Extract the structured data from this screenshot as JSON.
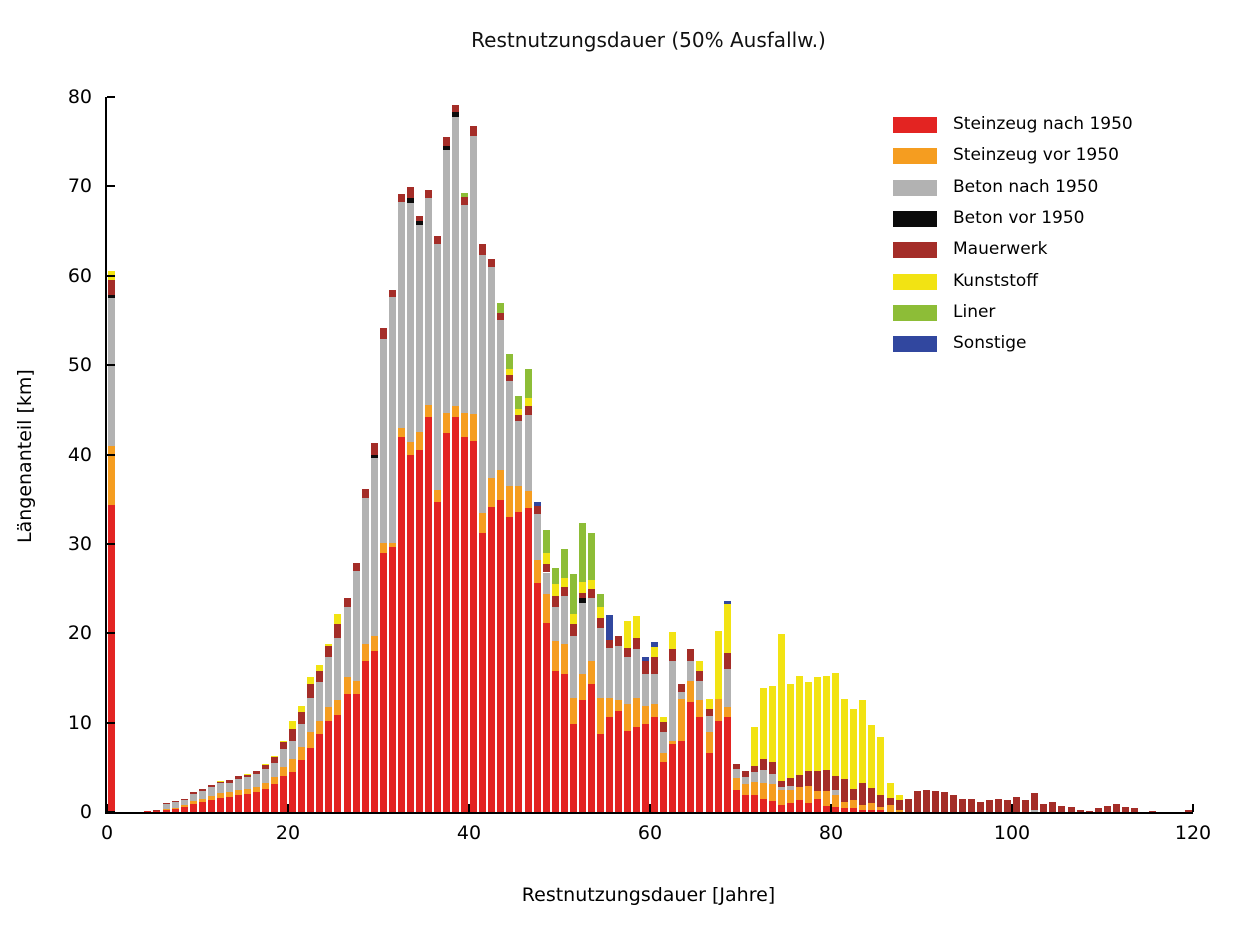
{
  "chart_data": {
    "type": "bar",
    "stacked": true,
    "title": "Restnutzungsdauer (50% Ausfallw.)",
    "xlabel": "Restnutzungsdauer [Jahre]",
    "ylabel": "Längenanteil [km]",
    "xlim": [
      0,
      120
    ],
    "ylim": [
      0,
      80
    ],
    "x_ticks": [
      0,
      20,
      40,
      60,
      80,
      100,
      120
    ],
    "y_ticks": [
      0,
      10,
      20,
      30,
      40,
      50,
      60,
      70,
      80
    ],
    "grid": false,
    "legend_position": "upper right",
    "bar_unit": "years",
    "categories_note": "x = residual service life in years, one stacked bar per year 0..120",
    "series": [
      {
        "name": "Steinzeug nach 1950",
        "color": "#e32422",
        "values": [
          34.4,
          0,
          0,
          0,
          0.15,
          0.2,
          0.2,
          0.3,
          0.55,
          0.9,
          1.1,
          1.3,
          1.6,
          1.7,
          1.9,
          2.0,
          2.2,
          2.6,
          3.1,
          4.0,
          4.5,
          5.8,
          7.2,
          8.7,
          10.2,
          10.8,
          13.2,
          13.2,
          16.9,
          18.0,
          29.0,
          29.6,
          42.0,
          40.0,
          40.5,
          44.2,
          34.7,
          42.4,
          44.2,
          42.0,
          41.5,
          31.2,
          34.1,
          34.9,
          33.0,
          33.6,
          34.0,
          25.6,
          21.2,
          15.8,
          15.4,
          9.9,
          12.5,
          14.3,
          8.7,
          10.6,
          11.3,
          9.1,
          9.5,
          9.9,
          10.6,
          5.6,
          7.6,
          8.0,
          12.3,
          10.6,
          6.6,
          10.2,
          10.6,
          2.5,
          1.9,
          1.9,
          1.5,
          1.2,
          0.8,
          1.0,
          1.3,
          1.0,
          1.5,
          0.7,
          0.6,
          0.4,
          0.4,
          0.2,
          0.2,
          0.2,
          0,
          0,
          0,
          0,
          0,
          0,
          0,
          0,
          0,
          0,
          0,
          0,
          0,
          0,
          0,
          0,
          0,
          0,
          0,
          0,
          0,
          0,
          0,
          0,
          0,
          0,
          0,
          0,
          0,
          0,
          0,
          0,
          0,
          0,
          0
        ]
      },
      {
        "name": "Steinzeug vor 1950",
        "color": "#f59d20",
        "values": [
          6.6,
          0,
          0,
          0,
          0,
          0,
          0.1,
          0.2,
          0.25,
          0.35,
          0.4,
          0.5,
          0.5,
          0.5,
          0.55,
          0.6,
          0.6,
          0.7,
          0.8,
          1.0,
          1.4,
          1.5,
          1.7,
          1.5,
          1.5,
          1.7,
          1.9,
          1.5,
          1.9,
          1.7,
          1.1,
          0.5,
          1.0,
          1.4,
          2.0,
          1.3,
          1.3,
          2.2,
          1.2,
          2.6,
          3.0,
          2.3,
          3.3,
          3.4,
          3.5,
          2.9,
          1.9,
          2.6,
          3.2,
          3.3,
          3.4,
          2.9,
          2.9,
          2.6,
          4.1,
          2.2,
          1.2,
          3.0,
          3.3,
          2.0,
          1.5,
          1.0,
          0.4,
          4.6,
          2.4,
          1.9,
          2.4,
          2.4,
          1.1,
          1.3,
          1.2,
          1.5,
          1.7,
          1.9,
          1.7,
          1.5,
          1.5,
          1.9,
          0.9,
          1.7,
          1.3,
          0.7,
          0.9,
          0.6,
          0.8,
          0.4,
          0.8,
          0.2,
          0,
          0,
          0,
          0,
          0,
          0,
          0,
          0,
          0,
          0,
          0,
          0,
          0,
          0,
          0,
          0,
          0,
          0,
          0,
          0,
          0,
          0,
          0,
          0,
          0,
          0,
          0,
          0,
          0,
          0,
          0,
          0,
          0
        ]
      },
      {
        "name": "Beton nach 1950",
        "color": "#b2b2b2",
        "values": [
          16.5,
          0,
          0,
          0,
          0,
          0,
          0.6,
          0.6,
          0.6,
          0.8,
          0.9,
          1.0,
          1.1,
          1.1,
          1.2,
          1.3,
          1.4,
          1.5,
          1.6,
          2.0,
          2.1,
          2.6,
          3.9,
          4.3,
          5.6,
          7.0,
          7.8,
          12.3,
          16.3,
          19.9,
          22.8,
          27.5,
          25.3,
          26.7,
          23.2,
          23.2,
          27.6,
          29.5,
          32.4,
          23.3,
          31.1,
          28.8,
          23.6,
          16.7,
          11.7,
          7.3,
          8.5,
          5.2,
          2.4,
          3.8,
          5.4,
          6.9,
          8.0,
          7.1,
          7.8,
          5.6,
          6.1,
          5.2,
          5.4,
          3.5,
          3.3,
          2.4,
          8.9,
          0.8,
          2.2,
          2.2,
          1.7,
          0,
          4.3,
          1.0,
          0.8,
          1.1,
          1.5,
          1.2,
          0.3,
          0.4,
          0,
          0,
          0,
          0,
          0.6,
          0,
          0,
          0,
          0,
          0,
          0,
          0,
          0,
          0,
          0,
          0,
          0,
          0,
          0,
          0,
          0,
          0,
          0,
          0,
          0,
          0,
          0.2,
          0,
          0,
          0,
          0,
          0,
          0,
          0,
          0,
          0,
          0,
          0,
          0,
          0,
          0,
          0,
          0,
          0,
          0
        ]
      },
      {
        "name": "Beton vor 1950",
        "color": "#0b0b0b",
        "values": [
          0.4,
          0,
          0,
          0,
          0,
          0,
          0,
          0,
          0,
          0,
          0,
          0,
          0,
          0,
          0,
          0,
          0,
          0,
          0,
          0,
          0,
          0,
          0,
          0,
          0,
          0,
          0,
          0,
          0,
          0.4,
          0,
          0,
          0,
          0.6,
          0.4,
          0,
          0,
          0.4,
          0.5,
          0,
          0,
          0,
          0,
          0,
          0,
          0,
          0,
          0,
          0,
          0,
          0,
          0,
          0.6,
          0,
          0,
          0,
          0,
          0,
          0,
          0,
          0,
          0,
          0,
          0,
          0,
          0,
          0,
          0,
          0,
          0,
          0,
          0,
          0,
          0,
          0,
          0,
          0,
          0,
          0,
          0,
          0,
          0,
          0,
          0,
          0,
          0,
          0,
          0,
          0,
          0,
          0,
          0,
          0,
          0,
          0,
          0,
          0,
          0,
          0,
          0,
          0,
          0,
          0,
          0,
          0,
          0,
          0,
          0,
          0,
          0,
          0,
          0,
          0,
          0,
          0,
          0,
          0,
          0,
          0,
          0,
          0
        ]
      },
      {
        "name": "Mauerwerk",
        "color": "#a42d28",
        "values": [
          1.6,
          0,
          0,
          0,
          0,
          0.05,
          0.1,
          0.1,
          0.1,
          0.15,
          0.2,
          0.2,
          0.25,
          0.3,
          0.35,
          0.3,
          0.4,
          0.5,
          0.7,
          0.9,
          1.3,
          1.3,
          1.5,
          1.3,
          1.3,
          1.5,
          1.1,
          0.9,
          1.0,
          1.3,
          1.3,
          0.8,
          0.8,
          1.2,
          0.6,
          0.9,
          0.9,
          1.0,
          0.8,
          0.9,
          1.2,
          1.2,
          0.9,
          0.8,
          0.7,
          0.6,
          1.0,
          0.8,
          0.9,
          1.3,
          1.0,
          1.3,
          0.5,
          0.9,
          1.1,
          0.9,
          1.1,
          1.1,
          1.3,
          1.5,
          1.9,
          1.1,
          1.3,
          0.9,
          1.3,
          1.1,
          0.8,
          0,
          1.8,
          0.6,
          0.7,
          0.6,
          1.2,
          1.3,
          0.7,
          0.9,
          1.3,
          1.7,
          2.2,
          2.3,
          1.5,
          2.6,
          1.3,
          2.4,
          1.7,
          1.3,
          0.8,
          1.2,
          1.5,
          2.4,
          2.5,
          2.4,
          2.2,
          1.9,
          1.5,
          1.5,
          1.1,
          1.3,
          1.5,
          1.3,
          1.7,
          1.3,
          1.9,
          0.9,
          1.1,
          0.7,
          0.6,
          0.2,
          0.1,
          0.4,
          0.7,
          0.9,
          0.6,
          0.5,
          0,
          0.1,
          0,
          0,
          0,
          0.2,
          0
        ]
      },
      {
        "name": "Kunststoff",
        "color": "#f2e313",
        "values": [
          1.0,
          0,
          0,
          0,
          0,
          0,
          0,
          0,
          0,
          0,
          0,
          0,
          0.05,
          0,
          0,
          0.1,
          0,
          0.1,
          0.1,
          0.1,
          0.9,
          0.7,
          0.8,
          0.7,
          0.2,
          1.1,
          0,
          0,
          0,
          0,
          0,
          0,
          0,
          0,
          0,
          0,
          0,
          0,
          0,
          0,
          0,
          0,
          0,
          0,
          0.7,
          0.7,
          0.9,
          0,
          1.3,
          1.3,
          1.0,
          1.1,
          1.2,
          1.1,
          1.2,
          0,
          0,
          3.0,
          2.4,
          0,
          1.2,
          0.5,
          1.9,
          0,
          0,
          1.1,
          1.1,
          7.7,
          5.5,
          0,
          0,
          4.4,
          8.0,
          8.5,
          16.4,
          10.5,
          11.1,
          9.9,
          10.5,
          10.5,
          11.6,
          8.9,
          8.9,
          9.3,
          7.0,
          6.5,
          1.6,
          0.5,
          0,
          0,
          0,
          0,
          0,
          0,
          0,
          0,
          0,
          0,
          0,
          0,
          0,
          0,
          0,
          0,
          0,
          0,
          0,
          0,
          0,
          0,
          0,
          0,
          0,
          0,
          0,
          0,
          0,
          0,
          0,
          0,
          0
        ]
      },
      {
        "name": "Liner",
        "color": "#8dbd37",
        "values": [
          0,
          0,
          0,
          0,
          0,
          0,
          0,
          0,
          0,
          0,
          0,
          0,
          0,
          0,
          0,
          0,
          0,
          0,
          0,
          0,
          0,
          0,
          0,
          0,
          0,
          0,
          0,
          0,
          0,
          0,
          0,
          0,
          0,
          0,
          0,
          0,
          0,
          0,
          0,
          0.5,
          0,
          0,
          0,
          1.1,
          1.7,
          1.5,
          3.3,
          0,
          2.6,
          1.8,
          3.2,
          4.5,
          6.6,
          5.2,
          1.5,
          0,
          0,
          0,
          0,
          0,
          0,
          0,
          0,
          0,
          0,
          0,
          0,
          0,
          0,
          0,
          0,
          0,
          0,
          0,
          0,
          0,
          0,
          0,
          0,
          0,
          0,
          0,
          0,
          0,
          0,
          0,
          0,
          0,
          0,
          0,
          0,
          0,
          0,
          0,
          0,
          0,
          0,
          0,
          0,
          0,
          0,
          0,
          0,
          0,
          0,
          0,
          0,
          0,
          0,
          0,
          0,
          0,
          0,
          0,
          0,
          0,
          0,
          0,
          0,
          0,
          0,
          0
        ]
      },
      {
        "name": "Sonstige",
        "color": "#31479f",
        "values": [
          0,
          0,
          0,
          0,
          0,
          0,
          0,
          0,
          0,
          0,
          0,
          0,
          0,
          0,
          0,
          0,
          0,
          0,
          0,
          0,
          0,
          0,
          0,
          0,
          0,
          0,
          0,
          0,
          0,
          0,
          0,
          0,
          0,
          0,
          0,
          0,
          0,
          0,
          0,
          0,
          0,
          0,
          0,
          0,
          0,
          0,
          0,
          0.5,
          0,
          0,
          0,
          0,
          0,
          0,
          0,
          2.8,
          0,
          0,
          0,
          0.4,
          0.5,
          0,
          0,
          0,
          0,
          0,
          0,
          0,
          0.3,
          0,
          0,
          0,
          0,
          0,
          0,
          0,
          0,
          0,
          0,
          0,
          0,
          0,
          0,
          0,
          0,
          0,
          0,
          0,
          0,
          0,
          0,
          0,
          0,
          0,
          0,
          0,
          0,
          0,
          0,
          0,
          0,
          0,
          0,
          0,
          0,
          0,
          0,
          0,
          0,
          0,
          0,
          0,
          0,
          0,
          0,
          0,
          0,
          0,
          0,
          0,
          0,
          0
        ]
      }
    ]
  }
}
